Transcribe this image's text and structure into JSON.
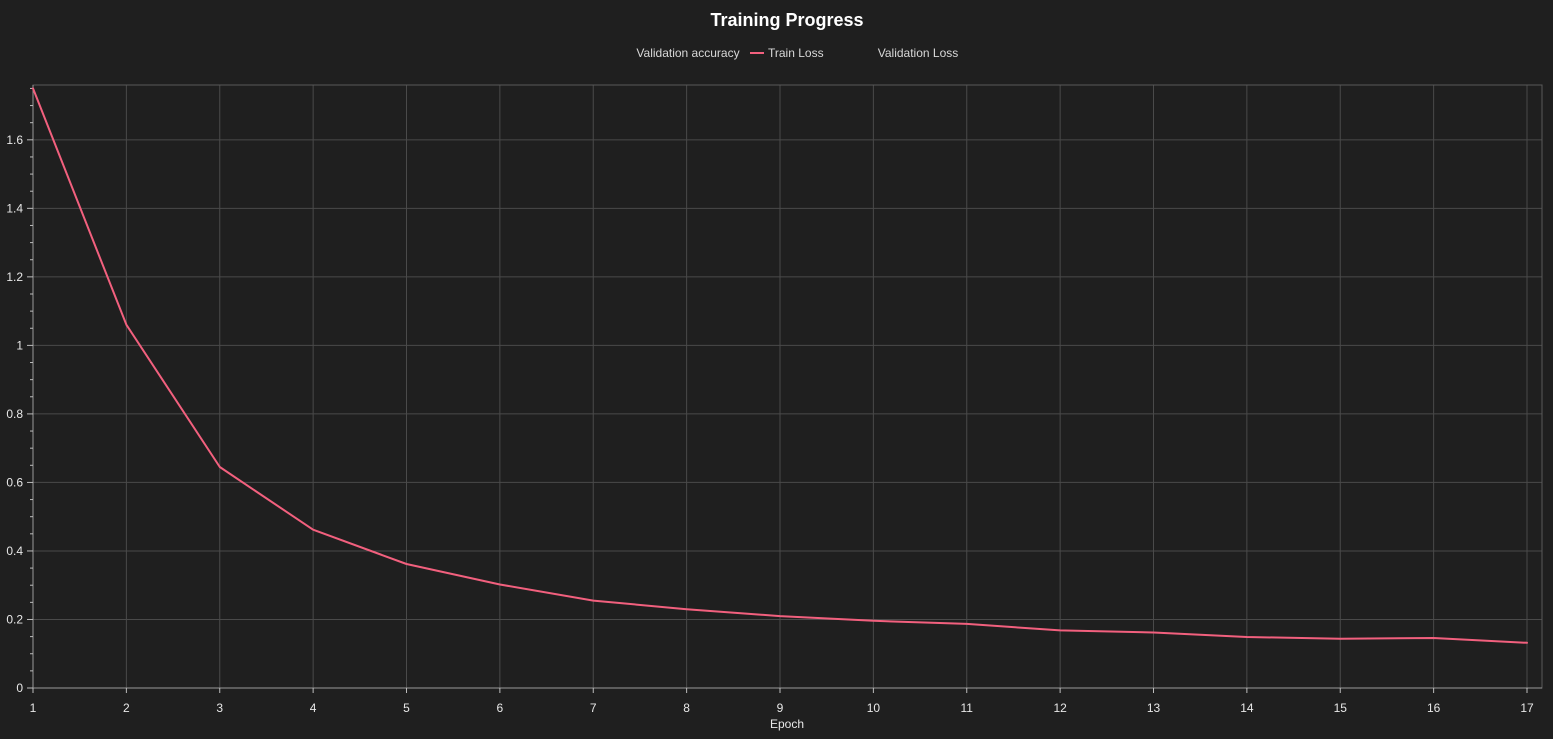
{
  "chart_data": {
    "type": "line",
    "title": "Training Progress",
    "xlabel": "Epoch",
    "ylabel": "",
    "xlim": [
      1,
      17
    ],
    "ylim": [
      0,
      1.76
    ],
    "x": [
      1,
      2,
      3,
      4,
      5,
      6,
      7,
      8,
      9,
      10,
      11,
      12,
      13,
      14,
      15,
      16,
      17
    ],
    "x_ticks": [
      "1",
      "2",
      "3",
      "4",
      "5",
      "6",
      "7",
      "8",
      "9",
      "10",
      "11",
      "12",
      "13",
      "14",
      "15",
      "16",
      "17"
    ],
    "y_ticks": [
      "0",
      "0.2",
      "0.4",
      "0.6",
      "0.8",
      "1",
      "1.2",
      "1.4",
      "1.6"
    ],
    "y_tick_values": [
      0,
      0.2,
      0.4,
      0.6,
      0.8,
      1,
      1.2,
      1.4,
      1.6
    ],
    "grid": true,
    "legend_position": "top-center",
    "legend": [
      {
        "name": "Validation accuracy",
        "color": "",
        "visible": false
      },
      {
        "name": "Train Loss",
        "color": "#f2607e",
        "visible": true
      },
      {
        "name": "Validation Loss",
        "color": "",
        "visible": false
      }
    ],
    "series": [
      {
        "name": "Train Loss",
        "color": "#f2607e",
        "values": [
          1.75,
          1.06,
          0.645,
          0.462,
          0.362,
          0.302,
          0.255,
          0.23,
          0.21,
          0.196,
          0.187,
          0.168,
          0.162,
          0.149,
          0.144,
          0.146,
          0.132
        ]
      }
    ]
  }
}
